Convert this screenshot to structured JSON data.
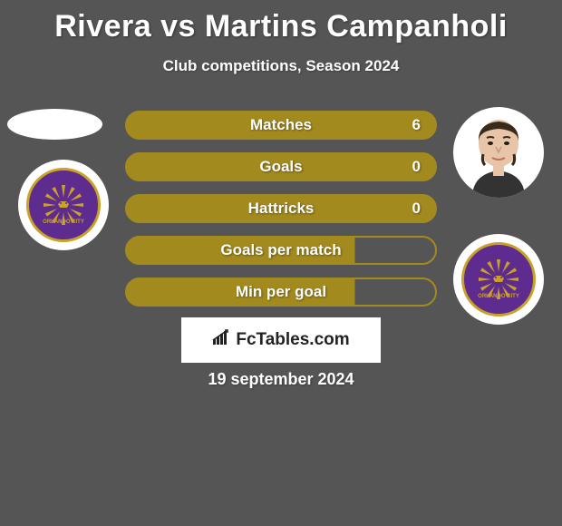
{
  "title": "Rivera vs Martins Campanholi",
  "subtitle": "Club competitions, Season 2024",
  "date": "19 september 2024",
  "watermark": "FcTables.com",
  "colors": {
    "background": "#555555",
    "bar_border": "#a38a1e",
    "bar_fill": "#a38a1e",
    "bar_fill_partial": "#a38a1e",
    "bar_empty": "transparent",
    "text": "#ffffff",
    "club_primary": "#5e2b8f",
    "club_accent": "#c9a227",
    "watermark_bg": "#ffffff",
    "watermark_text": "#222222"
  },
  "stats": [
    {
      "label": "Matches",
      "value": "6",
      "fill_pct": 100
    },
    {
      "label": "Goals",
      "value": "0",
      "fill_pct": 100
    },
    {
      "label": "Hattricks",
      "value": "0",
      "fill_pct": 100
    },
    {
      "label": "Goals per match",
      "value": "",
      "fill_pct": 74
    },
    {
      "label": "Min per goal",
      "value": "",
      "fill_pct": 74
    }
  ],
  "club_name": "Orlando City",
  "player_left": {
    "has_photo": false
  },
  "player_right": {
    "has_photo": true
  }
}
